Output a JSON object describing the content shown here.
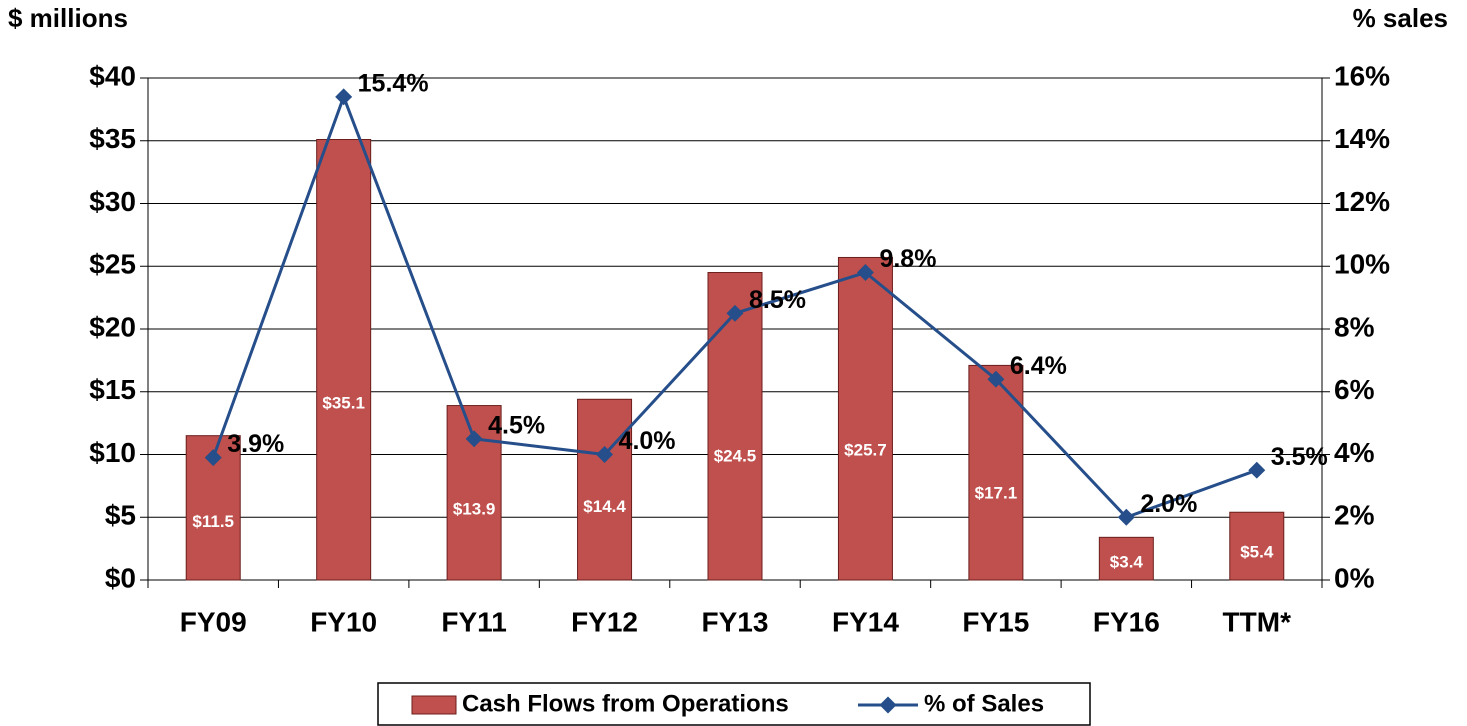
{
  "chart_data": {
    "type": "bar+line",
    "y_axis_label": "$ millions",
    "y2_axis_label": "% sales",
    "categories": [
      "FY09",
      "FY10",
      "FY11",
      "FY12",
      "FY13",
      "FY14",
      "FY15",
      "FY16",
      "TTM*"
    ],
    "series": [
      {
        "name": "Cash Flows from Operations",
        "type": "bar",
        "color": "#c0504d",
        "values": [
          11.5,
          35.1,
          13.9,
          14.4,
          24.5,
          25.7,
          17.1,
          3.4,
          5.4
        ],
        "value_labels": [
          "$11.5",
          "$35.1",
          "$13.9",
          "$14.4",
          "$24.5",
          "$25.7",
          "$17.1",
          "$3.4",
          "$5.4"
        ]
      },
      {
        "name": "% of Sales",
        "type": "line",
        "color": "#254e8a",
        "axis": "y2",
        "values": [
          3.9,
          15.4,
          4.5,
          4.0,
          8.5,
          9.8,
          6.4,
          2.0,
          3.5
        ],
        "value_labels": [
          "3.9%",
          "15.4%",
          "4.5%",
          "4.0%",
          "8.5%",
          "9.8%",
          "6.4%",
          "2.0%",
          "3.5%"
        ]
      }
    ],
    "ylim": [
      0,
      40
    ],
    "yticks": [
      {
        "value": 0,
        "label": "$0"
      },
      {
        "value": 5,
        "label": "$5"
      },
      {
        "value": 10,
        "label": "$10"
      },
      {
        "value": 15,
        "label": "$15"
      },
      {
        "value": 20,
        "label": "$20"
      },
      {
        "value": 25,
        "label": "$25"
      },
      {
        "value": 30,
        "label": "$30"
      },
      {
        "value": 35,
        "label": "$35"
      },
      {
        "value": 40,
        "label": "$40"
      }
    ],
    "y2lim": [
      0,
      16
    ],
    "y2ticks": [
      {
        "value": 0,
        "label": "0%"
      },
      {
        "value": 2,
        "label": "2%"
      },
      {
        "value": 4,
        "label": "4%"
      },
      {
        "value": 6,
        "label": "6%"
      },
      {
        "value": 8,
        "label": "8%"
      },
      {
        "value": 10,
        "label": "10%"
      },
      {
        "value": 12,
        "label": "12%"
      },
      {
        "value": 14,
        "label": "14%"
      },
      {
        "value": 16,
        "label": "16%"
      }
    ],
    "grid": true,
    "legend": "bottom"
  }
}
